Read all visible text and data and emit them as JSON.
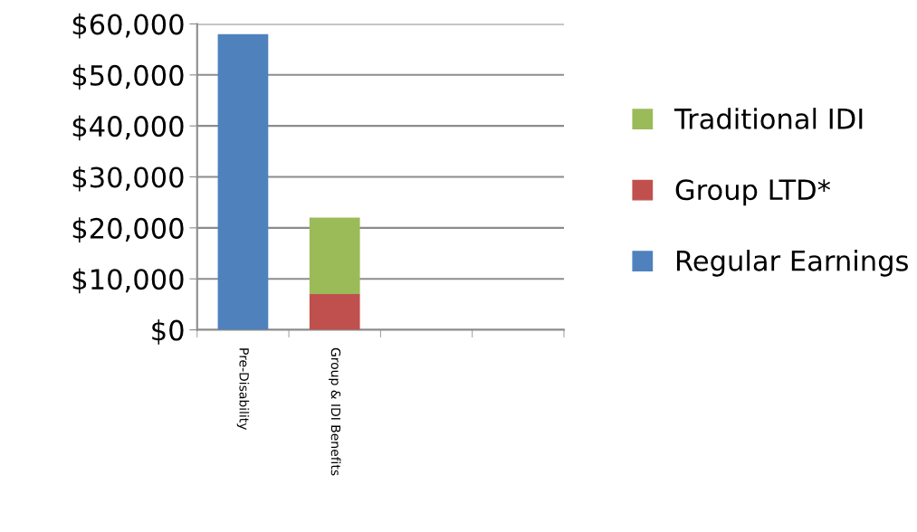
{
  "chart_data": {
    "type": "bar",
    "stacked": true,
    "categories": [
      "Pre-Disability",
      "Group & IDI Benefits",
      null,
      null
    ],
    "series": [
      {
        "name": "Regular Earnings",
        "color": "#4f81bd",
        "values": [
          58000,
          0,
          null,
          null
        ]
      },
      {
        "name": "Group LTD*",
        "color": "#c0504d",
        "values": [
          0,
          7000,
          null,
          null
        ]
      },
      {
        "name": "Traditional IDI",
        "color": "#9bbb59",
        "values": [
          0,
          15000,
          null,
          null
        ]
      }
    ],
    "ylim": [
      0,
      60000
    ],
    "yticks": [
      {
        "value": 0,
        "label": "$0"
      },
      {
        "value": 10000,
        "label": "$10,000"
      },
      {
        "value": 20000,
        "label": "$20,000"
      },
      {
        "value": 30000,
        "label": "$30,000"
      },
      {
        "value": 40000,
        "label": "$40,000"
      },
      {
        "value": 50000,
        "label": "$50,000"
      },
      {
        "value": 60000,
        "label": "$60,000"
      }
    ],
    "grid": "y",
    "legend": "right"
  }
}
